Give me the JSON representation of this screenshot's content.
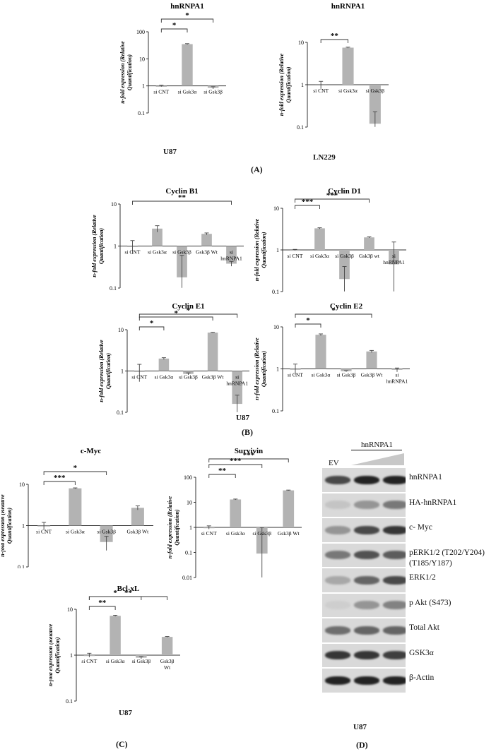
{
  "panels": {
    "A": "(A)",
    "B": "(B)",
    "C": "(C)",
    "D": "(D)"
  },
  "cell_labels": {
    "a_left": "U87",
    "a_right": "LN229",
    "b": "U87",
    "c": "U87",
    "d": "U87"
  },
  "ylabel": "n-fold expression (Relative Quantification)",
  "chart_data": [
    {
      "id": "A1",
      "type": "bar",
      "log_y": true,
      "title": "hnRNPA1",
      "ylim": [
        0.1,
        100
      ],
      "ticks": [
        "0.1",
        "1",
        "10",
        "100"
      ],
      "categories": [
        "si CNT",
        "si Gsk3α",
        "si Gsk3β"
      ],
      "values": [
        1.0,
        35,
        0.85
      ],
      "errors": [
        0.06,
        1.5,
        0.08
      ],
      "brackets": [
        {
          "from": 0,
          "to": 1,
          "label": "*",
          "level": 1
        },
        {
          "from": 0,
          "to": 2,
          "label": "*",
          "level": 2
        }
      ]
    },
    {
      "id": "A2",
      "type": "bar",
      "log_y": true,
      "title": "hnRNPA1",
      "ylim": [
        0.1,
        10
      ],
      "ticks": [
        "0.1",
        "1",
        "10"
      ],
      "categories": [
        "si CNT",
        "si Gsk3α",
        "si Gsk3β"
      ],
      "values": [
        1.0,
        7.5,
        0.12
      ],
      "errors": [
        0.2,
        0.2,
        0.11
      ],
      "brackets": [
        {
          "from": 0,
          "to": 1,
          "label": "**",
          "level": 1
        }
      ]
    },
    {
      "id": "B1",
      "type": "bar",
      "log_y": true,
      "title": "Cyclin B1",
      "ylim": [
        0.1,
        10
      ],
      "ticks": [
        "0.1",
        "1",
        "10"
      ],
      "categories": [
        "si CNT",
        "si Gsk3α",
        "si Gsk3β",
        "Gsk3β Wt",
        "si hnRNPA1"
      ],
      "values": [
        1.0,
        2.6,
        0.18,
        1.95,
        0.38
      ],
      "errors": [
        0.35,
        0.45,
        0.42,
        0.1,
        0.05
      ],
      "brackets": [
        {
          "from": 0,
          "to": 4,
          "label": "**",
          "level": 1
        }
      ]
    },
    {
      "id": "B2",
      "type": "bar",
      "log_y": true,
      "title": "Cyclin D1",
      "ylim": [
        0.1,
        10
      ],
      "ticks": [
        "0.1",
        "1",
        "10"
      ],
      "categories": [
        "si CNT",
        "si Gsk3α",
        "si Gsk3β",
        "Gsk3β wt",
        "si hnRNPA1"
      ],
      "values": [
        1.0,
        3.3,
        0.2,
        2.0,
        0.45
      ],
      "errors": [
        0.03,
        0.1,
        0.2,
        0.06,
        1.1
      ],
      "brackets": [
        {
          "from": 0,
          "to": 1,
          "label": "***",
          "level": 1
        },
        {
          "from": 0,
          "to": 3,
          "label": "***",
          "level": 2
        }
      ]
    },
    {
      "id": "B3",
      "type": "bar",
      "log_y": true,
      "title": "Cyclin E1",
      "ylim": [
        0.1,
        10
      ],
      "ticks": [
        "0.1",
        "1",
        "10"
      ],
      "categories": [
        "si CNT",
        "si Gsk3α",
        "si Gsk3β",
        "Gsk3β Wt",
        "si hnRNPA1"
      ],
      "values": [
        1.0,
        2.0,
        0.85,
        8.5,
        0.16
      ],
      "errors": [
        0.45,
        0.1,
        0.05,
        0.15,
        0.1
      ],
      "brackets": [
        {
          "from": 0,
          "to": 1,
          "label": "*",
          "level": 1
        },
        {
          "from": 0,
          "to": 3,
          "label": "*",
          "level": 2
        },
        {
          "from": 0,
          "to": 4,
          "label": "*",
          "level": 3
        }
      ]
    },
    {
      "id": "B4",
      "type": "bar",
      "log_y": true,
      "title": "Cyclin E2",
      "ylim": [
        0.1,
        10
      ],
      "ticks": [
        "0.1",
        "1",
        "10"
      ],
      "categories": [
        "si CNT",
        "si Gsk3α",
        "si Gsk3β",
        "Gsk3β Wt",
        "si hnRNPA1"
      ],
      "values": [
        1.0,
        6.5,
        0.88,
        2.6,
        0.95
      ],
      "errors": [
        0.3,
        0.3,
        0.03,
        0.15,
        0.1
      ],
      "brackets": [
        {
          "from": 0,
          "to": 1,
          "label": "*",
          "level": 1
        },
        {
          "from": 0,
          "to": 3,
          "label": "*",
          "level": 2
        }
      ]
    },
    {
      "id": "C1",
      "type": "bar",
      "log_y": true,
      "title": "c-Myc",
      "ylim": [
        0.1,
        10
      ],
      "ticks": [
        "0.1",
        "1",
        "10"
      ],
      "categories": [
        "si CNT",
        "si Gsk3α",
        "si Gsk3β",
        "Gsk3β Wt"
      ],
      "values": [
        1.0,
        8.0,
        0.4,
        2.7
      ],
      "errors": [
        0.2,
        0.2,
        0.15,
        0.3
      ],
      "brackets": [
        {
          "from": 0,
          "to": 1,
          "label": "***",
          "level": 1
        },
        {
          "from": 0,
          "to": 2,
          "label": "*",
          "level": 2
        }
      ]
    },
    {
      "id": "C2",
      "type": "bar",
      "log_y": true,
      "title": "Survivin",
      "ylim": [
        0.01,
        100
      ],
      "ticks": [
        "0.01",
        "0.1",
        "1",
        "10",
        "100"
      ],
      "categories": [
        "si CNT",
        "si Gsk3α",
        "si Gsk3β",
        "Gsk3β Wt"
      ],
      "values": [
        1.0,
        13,
        0.09,
        30
      ],
      "errors": [
        0.15,
        0.5,
        0.9,
        0.8
      ],
      "brackets": [
        {
          "from": 0,
          "to": 1,
          "label": "**",
          "level": 1
        },
        {
          "from": 0,
          "to": 2,
          "label": "***",
          "level": 2
        },
        {
          "from": 0,
          "to": 3,
          "label": "***",
          "level": 3
        }
      ]
    },
    {
      "id": "C3",
      "type": "bar",
      "log_y": true,
      "title": "Bcl-xL",
      "ylim": [
        0.1,
        10
      ],
      "ticks": [
        "0.1",
        "1",
        "10"
      ],
      "categories": [
        "si CNT",
        "si Gsk3α",
        "si Gsk3β",
        "Gsk3β Wt"
      ],
      "values": [
        1.0,
        7.2,
        0.88,
        2.5
      ],
      "errors": [
        0.1,
        0.2,
        0.05,
        0.05
      ],
      "brackets": [
        {
          "from": 0,
          "to": 1,
          "label": "**",
          "level": 1
        },
        {
          "from": 0,
          "to": 2,
          "label": "*",
          "level": 2
        },
        {
          "from": 0,
          "to": 3,
          "label": "**",
          "level": 3
        }
      ]
    }
  ],
  "western_blot": {
    "header_group": "hnRNPA1",
    "lane_labels": [
      "EV"
    ],
    "rows": [
      "hnRNPA1",
      "HA-hnRNPA1",
      "c- Myc",
      "pERK1/2 (T202/Y204)",
      "ERK1/2",
      "p Akt (S473)",
      "Total Akt",
      "GSK3α",
      "β-Actin"
    ],
    "row_sublabels": {
      "pERK1/2 (T202/Y204)": "(T185/Y187)"
    },
    "band_intensity": [
      [
        0.75,
        0.95,
        0.95
      ],
      [
        0.1,
        0.35,
        0.5
      ],
      [
        0.35,
        0.75,
        0.85
      ],
      [
        0.5,
        0.7,
        0.65
      ],
      [
        0.25,
        0.6,
        0.75
      ],
      [
        0.05,
        0.35,
        0.45
      ],
      [
        0.55,
        0.6,
        0.6
      ],
      [
        0.85,
        0.85,
        0.8
      ],
      [
        0.95,
        0.95,
        0.95
      ]
    ]
  }
}
